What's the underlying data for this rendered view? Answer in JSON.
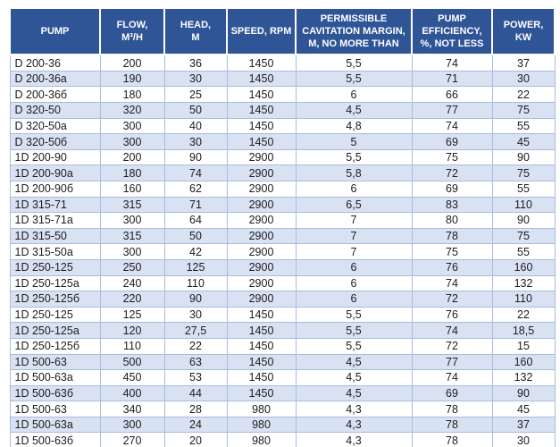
{
  "chart_data": {
    "type": "table",
    "columns": [
      {
        "label": "PUMP"
      },
      {
        "label": "FLOW,\nM³/H"
      },
      {
        "label": "HEAD,\nM"
      },
      {
        "label": "SPEED, RPM"
      },
      {
        "label": "PERMISSIBLE\nCAVITATION MARGIN,\nM, NO MORE THAN"
      },
      {
        "label": "PUMP\nEFFICIENCY,\n%, NOT LESS"
      },
      {
        "label": "POWER,\nKW"
      }
    ],
    "rows": [
      [
        "D 200-36",
        "200",
        "36",
        "1450",
        "5,5",
        "74",
        "37"
      ],
      [
        "D 200-36a",
        "190",
        "30",
        "1450",
        "5,5",
        "71",
        "30"
      ],
      [
        "D 200-36б",
        "180",
        "25",
        "1450",
        "6",
        "66",
        "22"
      ],
      [
        "D 320-50",
        "320",
        "50",
        "1450",
        "4,5",
        "77",
        "75"
      ],
      [
        "D 320-50a",
        "300",
        "40",
        "1450",
        "4,8",
        "74",
        "55"
      ],
      [
        "D 320-50б",
        "300",
        "30",
        "1450",
        "5",
        "69",
        "45"
      ],
      [
        "1D 200-90",
        "200",
        "90",
        "2900",
        "5,5",
        "75",
        "90"
      ],
      [
        "1D 200-90a",
        "180",
        "74",
        "2900",
        "5,8",
        "72",
        "75"
      ],
      [
        "1D 200-90б",
        "160",
        "62",
        "2900",
        "6",
        "69",
        "55"
      ],
      [
        "1D 315-71",
        "315",
        "71",
        "2900",
        "6,5",
        "83",
        "110"
      ],
      [
        "1D 315-71a",
        "300",
        "64",
        "2900",
        "7",
        "80",
        "90"
      ],
      [
        "1D 315-50",
        "315",
        "50",
        "2900",
        "7",
        "78",
        "75"
      ],
      [
        "1D 315-50a",
        "300",
        "42",
        "2900",
        "7",
        "75",
        "55"
      ],
      [
        "1D 250-125",
        "250",
        "125",
        "2900",
        "6",
        "76",
        "160"
      ],
      [
        "1D 250-125a",
        "240",
        "110",
        "2900",
        "6",
        "74",
        "132"
      ],
      [
        "1D 250-125б",
        "220",
        "90",
        "2900",
        "6",
        "72",
        "110"
      ],
      [
        "1D 250-125",
        "125",
        "30",
        "1450",
        "5,5",
        "76",
        "22"
      ],
      [
        "1D 250-125a",
        "120",
        "27,5",
        "1450",
        "5,5",
        "74",
        "18,5"
      ],
      [
        "1D 250-125б",
        "110",
        "22",
        "1450",
        "5,5",
        "72",
        "15"
      ],
      [
        "1D 500-63",
        "500",
        "63",
        "1450",
        "4,5",
        "77",
        "160"
      ],
      [
        "1D 500-63a",
        "450",
        "53",
        "1450",
        "4,5",
        "74",
        "132"
      ],
      [
        "1D 500-63б",
        "400",
        "44",
        "1450",
        "4,5",
        "69",
        "90"
      ],
      [
        "1D 500-63",
        "340",
        "28",
        "980",
        "4,3",
        "78",
        "45"
      ],
      [
        "1D 500-63a",
        "300",
        "24",
        "980",
        "4,3",
        "78",
        "37"
      ],
      [
        "1D 500-63б",
        "270",
        "20",
        "980",
        "4,3",
        "78",
        "30"
      ]
    ],
    "layout": {
      "legend": "none",
      "grid": "on"
    }
  },
  "colors": {
    "header_bg": "#2F5597",
    "header_text": "#FFFFFF",
    "row_alt_bg": "#D9E2F3",
    "row_bg": "#FFFFFF",
    "grid_line": "#A9BCDE",
    "body_text": "#1C1C1C"
  }
}
